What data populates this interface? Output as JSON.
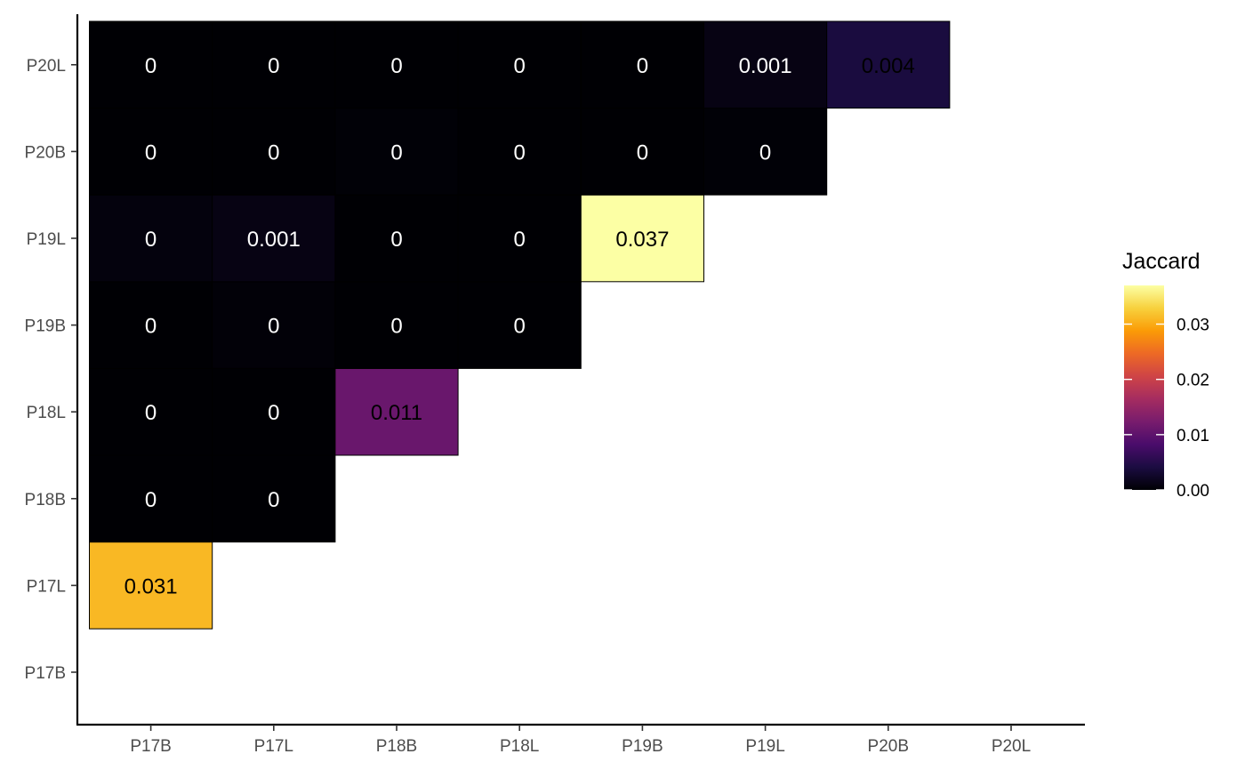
{
  "chart_data": {
    "type": "heatmap",
    "x_categories": [
      "P17B",
      "P17L",
      "P18B",
      "P18L",
      "P19B",
      "P19L",
      "P20B",
      "P20L"
    ],
    "y_categories": [
      "P17B",
      "P17L",
      "P18B",
      "P18L",
      "P19B",
      "P19L",
      "P20B",
      "P20L"
    ],
    "cells": [
      {
        "x": "P17B",
        "y": "P17L",
        "value": 0.031,
        "label": "0.031"
      },
      {
        "x": "P17B",
        "y": "P18B",
        "value": 0.0,
        "label": "0"
      },
      {
        "x": "P17L",
        "y": "P18B",
        "value": 0.0,
        "label": "0"
      },
      {
        "x": "P17B",
        "y": "P18L",
        "value": 0.0,
        "label": "0"
      },
      {
        "x": "P17L",
        "y": "P18L",
        "value": 0.0,
        "label": "0"
      },
      {
        "x": "P18B",
        "y": "P18L",
        "value": 0.011,
        "label": "0.011"
      },
      {
        "x": "P17B",
        "y": "P19B",
        "value": 0.0,
        "label": "0"
      },
      {
        "x": "P17L",
        "y": "P19B",
        "value": 0.0003,
        "label": "0"
      },
      {
        "x": "P18B",
        "y": "P19B",
        "value": 0.0,
        "label": "0"
      },
      {
        "x": "P18L",
        "y": "P19B",
        "value": 0.0,
        "label": "0"
      },
      {
        "x": "P17B",
        "y": "P19L",
        "value": 0.0006,
        "label": "0"
      },
      {
        "x": "P17L",
        "y": "P19L",
        "value": 0.001,
        "label": "0.001"
      },
      {
        "x": "P18B",
        "y": "P19L",
        "value": 0.0,
        "label": "0"
      },
      {
        "x": "P18L",
        "y": "P19L",
        "value": 0.0,
        "label": "0"
      },
      {
        "x": "P19B",
        "y": "P19L",
        "value": 0.037,
        "label": "0.037"
      },
      {
        "x": "P17B",
        "y": "P20B",
        "value": 0.0,
        "label": "0"
      },
      {
        "x": "P17L",
        "y": "P20B",
        "value": 0.0,
        "label": "0"
      },
      {
        "x": "P18B",
        "y": "P20B",
        "value": 0.0002,
        "label": "0"
      },
      {
        "x": "P18L",
        "y": "P20B",
        "value": 0.0,
        "label": "0"
      },
      {
        "x": "P19B",
        "y": "P20B",
        "value": 0.0,
        "label": "0"
      },
      {
        "x": "P19L",
        "y": "P20B",
        "value": 0.0002,
        "label": "0"
      },
      {
        "x": "P17B",
        "y": "P20L",
        "value": 0.0,
        "label": "0"
      },
      {
        "x": "P17L",
        "y": "P20L",
        "value": 0.0,
        "label": "0"
      },
      {
        "x": "P18B",
        "y": "P20L",
        "value": 0.0,
        "label": "0"
      },
      {
        "x": "P18L",
        "y": "P20L",
        "value": 0.0,
        "label": "0"
      },
      {
        "x": "P19B",
        "y": "P20L",
        "value": 0.0,
        "label": "0"
      },
      {
        "x": "P19L",
        "y": "P20L",
        "value": 0.001,
        "label": "0.001"
      },
      {
        "x": "P20B",
        "y": "P20L",
        "value": 0.004,
        "label": "0.004"
      }
    ],
    "legend": {
      "title": "Jaccard",
      "range": [
        0,
        0.037
      ],
      "breaks": [
        0.0,
        0.01,
        0.02,
        0.03
      ],
      "break_labels": [
        "0.00",
        "0.01",
        "0.02",
        "0.03"
      ],
      "colormap": "inferno",
      "position": "right"
    },
    "colors": {
      "stops": [
        "#000004",
        "#1b0c41",
        "#4a0c6b",
        "#781c6d",
        "#a52c60",
        "#cf4446",
        "#ed6925",
        "#fb9b06",
        "#f7d13d",
        "#fcffa4"
      ],
      "label_dark": "#000000",
      "label_light": "#ffffff"
    },
    "grid": false
  }
}
